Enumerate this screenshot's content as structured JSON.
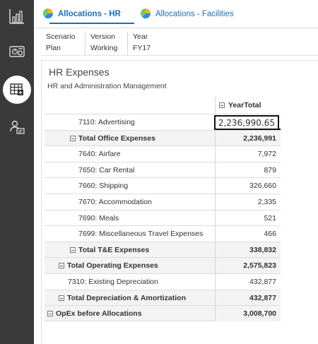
{
  "tabs": [
    {
      "label": "Allocations - HR",
      "active": true,
      "icon": "pie-chart-icon"
    },
    {
      "label": "Allocations - Facilities",
      "active": false,
      "icon": "pie-chart-icon"
    }
  ],
  "sidebar": {
    "items": [
      {
        "icon": "bar-chart-icon"
      },
      {
        "icon": "dashboard-icon"
      },
      {
        "icon": "data-grid-icon",
        "active": true
      },
      {
        "icon": "user-report-icon"
      }
    ]
  },
  "pov": {
    "columns": [
      {
        "header": "Scenario",
        "value": "Plan"
      },
      {
        "header": "Version",
        "value": "Working"
      },
      {
        "header": "Year",
        "value": "FY17"
      }
    ]
  },
  "form": {
    "title": "HR Expenses",
    "subtitle": "HR and Administration Management",
    "column_header": "YearTotal",
    "rows": [
      {
        "label": "7110: Advertising",
        "value": "2,236,990.65",
        "editing": true
      },
      {
        "label": "Total Office Expenses",
        "value": "2,236,991",
        "total": true
      },
      {
        "label": "7640: Airfare",
        "value": "7,972"
      },
      {
        "label": "7650: Car Rental",
        "value": "879"
      },
      {
        "label": "7660: Shipping",
        "value": "326,660"
      },
      {
        "label": "7670: Accommodation",
        "value": "2,335"
      },
      {
        "label": "7690: Meals",
        "value": "521"
      },
      {
        "label": "7699: Miscellaneous Travel Expenses",
        "value": "466"
      },
      {
        "label": "Total T&E Expenses",
        "value": "338,832",
        "total": true
      },
      {
        "label": "Total Operating Expenses",
        "value": "2,575,823",
        "total": true
      },
      {
        "label": "7310: Existing Depreciation",
        "value": "432,877"
      },
      {
        "label": "Total Depreciation & Amortization",
        "value": "432,877",
        "total": true
      },
      {
        "label": "OpEx before Allocations",
        "value": "3,008,700",
        "total": true
      }
    ]
  },
  "colors": {
    "sidebar_bg": "#3a3a3a",
    "tab_accent": "#1a6fb8",
    "total_row_bg": "#f3f3f3"
  }
}
